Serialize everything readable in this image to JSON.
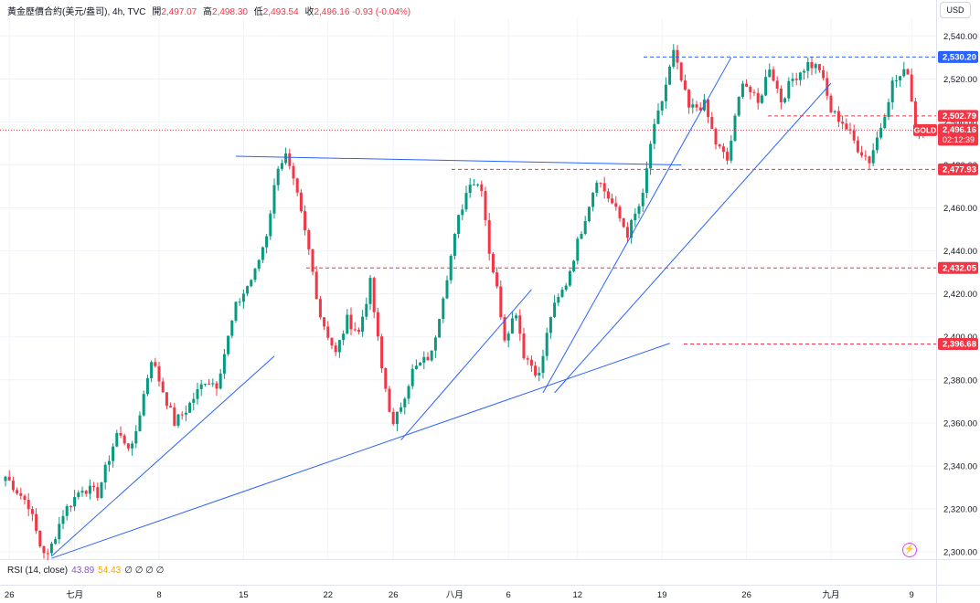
{
  "header": {
    "symbol": "黃金歷價合約(美元/盎司)",
    "interval": "4h",
    "source": "TVC",
    "open_label": "開",
    "open": "2,497.07",
    "high_label": "高",
    "high": "2,498.30",
    "low_label": "低",
    "low": "2,493.54",
    "close_label": "收",
    "close": "2,496.16",
    "change": "-0.93 (-0.04%)"
  },
  "currency_button": "USD",
  "rsi": {
    "title": "RSI (14, close)",
    "value1": "43.89",
    "value2": "54.43",
    "extras": "∅ ∅ ∅ ∅"
  },
  "colors": {
    "up": "#089981",
    "down": "#f23645",
    "trendline": "#2962ff",
    "hline_blue": "#2962ff",
    "hline_red": "#f23645",
    "grid": "#f0f3fa",
    "axis_text": "#131722",
    "rsi_purple": "#7e57c2"
  },
  "icons": [
    "lightning-icon"
  ],
  "chart_data": {
    "type": "candlestick",
    "title": "黃金歷價合約(美元/盎司), 4h, TVC",
    "ylim": [
      2296,
      2552
    ],
    "y_scale": "linear",
    "grid": true,
    "legend": "none",
    "y_ticks": [
      2300,
      2320,
      2340,
      2360,
      2380,
      2400,
      2420,
      2440,
      2460,
      2480,
      2500,
      2520,
      2540
    ],
    "y_tick_labels": [
      "2,300.00",
      "2,320.00",
      "2,340.00",
      "2,360.00",
      "2,380.00",
      "2,400.00",
      "2,420.00",
      "2,440.00",
      "2,460.00",
      "2,480.00",
      "2,500.00",
      "2,520.00",
      "2,540.00"
    ],
    "x_ticks": [
      "26",
      "七月",
      "8",
      "15",
      "22",
      "26",
      "八月",
      "6",
      "12",
      "19",
      "26",
      "九月",
      "9"
    ],
    "x_tick_index": [
      1,
      18,
      40,
      62,
      84,
      101,
      117,
      131,
      149,
      171,
      193,
      215,
      236
    ],
    "candle_count": 240,
    "key_points": [
      [
        0,
        2335
      ],
      [
        6,
        2322
      ],
      [
        9,
        2303
      ],
      [
        11,
        2298
      ],
      [
        15,
        2318
      ],
      [
        20,
        2330
      ],
      [
        24,
        2327
      ],
      [
        29,
        2355
      ],
      [
        33,
        2348
      ],
      [
        38,
        2390
      ],
      [
        41,
        2375
      ],
      [
        44,
        2360
      ],
      [
        47,
        2366
      ],
      [
        52,
        2380
      ],
      [
        55,
        2378
      ],
      [
        60,
        2414
      ],
      [
        65,
        2430
      ],
      [
        68,
        2448
      ],
      [
        71,
        2480
      ],
      [
        73,
        2484
      ],
      [
        76,
        2465
      ],
      [
        79,
        2440
      ],
      [
        82,
        2410
      ],
      [
        86,
        2392
      ],
      [
        89,
        2408
      ],
      [
        92,
        2402
      ],
      [
        95,
        2425
      ],
      [
        98,
        2385
      ],
      [
        101,
        2358
      ],
      [
        106,
        2384
      ],
      [
        111,
        2392
      ],
      [
        114,
        2420
      ],
      [
        118,
        2455
      ],
      [
        121,
        2473
      ],
      [
        124,
        2470
      ],
      [
        126,
        2440
      ],
      [
        128,
        2422
      ],
      [
        130,
        2400
      ],
      [
        133,
        2412
      ],
      [
        135,
        2392
      ],
      [
        139,
        2382
      ],
      [
        142,
        2410
      ],
      [
        146,
        2425
      ],
      [
        150,
        2450
      ],
      [
        154,
        2474
      ],
      [
        158,
        2462
      ],
      [
        162,
        2448
      ],
      [
        166,
        2465
      ],
      [
        168,
        2490
      ],
      [
        171,
        2510
      ],
      [
        174,
        2532
      ],
      [
        178,
        2506
      ],
      [
        182,
        2508
      ],
      [
        185,
        2490
      ],
      [
        188,
        2482
      ],
      [
        192,
        2520
      ],
      [
        196,
        2508
      ],
      [
        199,
        2526
      ],
      [
        202,
        2510
      ],
      [
        205,
        2520
      ],
      [
        209,
        2527
      ],
      [
        212,
        2525
      ],
      [
        215,
        2505
      ],
      [
        218,
        2500
      ],
      [
        222,
        2488
      ],
      [
        225,
        2482
      ],
      [
        228,
        2498
      ],
      [
        231,
        2518
      ],
      [
        235,
        2524
      ],
      [
        237,
        2496
      ],
      [
        239,
        2496
      ]
    ],
    "annotations": {
      "price_labels": [
        {
          "value": 2530.2,
          "label": "2,530.20",
          "color": "#2962ff",
          "style": "dashed"
        },
        {
          "value": 2502.79,
          "label": "2,502.79",
          "color": "#f23645",
          "style": "dashed"
        },
        {
          "value": 2496.16,
          "label": "2,496.16",
          "sub": "02:12:39",
          "tag": "GOLD",
          "color": "#f23645",
          "style": "dotted"
        },
        {
          "value": 2477.93,
          "label": "2,477.93",
          "color": "#f23645",
          "style": "dashed"
        },
        {
          "value": 2432.05,
          "label": "2,432.05",
          "color": "#f23645",
          "style": "dashed"
        },
        {
          "value": 2396.68,
          "label": "2,396.68",
          "color": "#f23645",
          "style": "dashed"
        }
      ],
      "trendlines": [
        {
          "from": [
            12,
            2298
          ],
          "to": [
            70,
            2391
          ]
        },
        {
          "from": [
            12,
            2297
          ],
          "to": [
            173,
            2397
          ]
        },
        {
          "from": [
            60,
            2484
          ],
          "to": [
            176,
            2480
          ]
        },
        {
          "from": [
            103,
            2352
          ],
          "to": [
            137,
            2422
          ]
        },
        {
          "from": [
            140,
            2374
          ],
          "to": [
            189,
            2530
          ]
        },
        {
          "from": [
            143,
            2374
          ],
          "to": [
            215,
            2518
          ]
        }
      ]
    }
  }
}
